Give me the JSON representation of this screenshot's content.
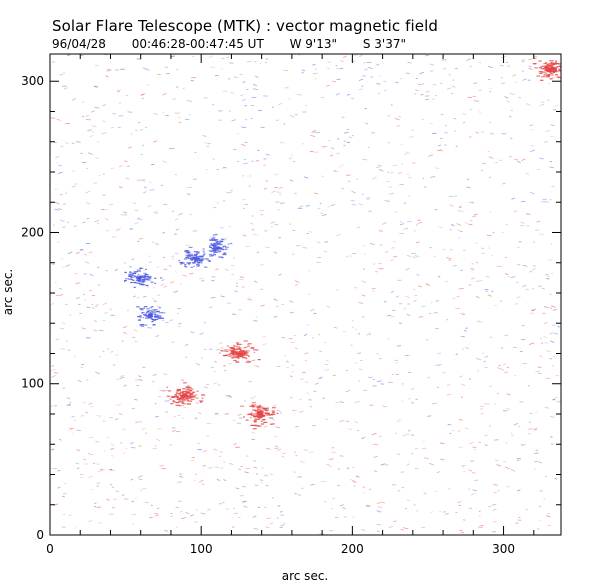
{
  "header": {
    "title": "Solar Flare Telescope (MTK) : vector magnetic field",
    "date": "96/04/28",
    "time_range": "00:46:28-00:47:45 UT",
    "longitude": "W 9'13\"",
    "latitude": "S 3'37\""
  },
  "axes": {
    "xlabel": "arc sec.",
    "ylabel": "arc sec.",
    "xlim": [
      0,
      338
    ],
    "ylim": [
      0,
      318
    ],
    "x_ticks": [
      0,
      100,
      200,
      300
    ],
    "y_ticks": [
      0,
      100,
      200,
      300
    ]
  },
  "colors": {
    "positive": "#e64545",
    "negative": "#4a57e0",
    "background": "#ffffff",
    "frame": "#000000"
  },
  "features": [
    {
      "polarity": "negative",
      "x": 110,
      "y": 190
    },
    {
      "polarity": "negative",
      "x": 95,
      "y": 183
    },
    {
      "polarity": "negative",
      "x": 58,
      "y": 170
    },
    {
      "polarity": "negative",
      "x": 65,
      "y": 145
    },
    {
      "polarity": "positive",
      "x": 124,
      "y": 120
    },
    {
      "polarity": "positive",
      "x": 88,
      "y": 92
    },
    {
      "polarity": "positive",
      "x": 138,
      "y": 80
    },
    {
      "polarity": "positive",
      "x": 330,
      "y": 308
    }
  ]
}
